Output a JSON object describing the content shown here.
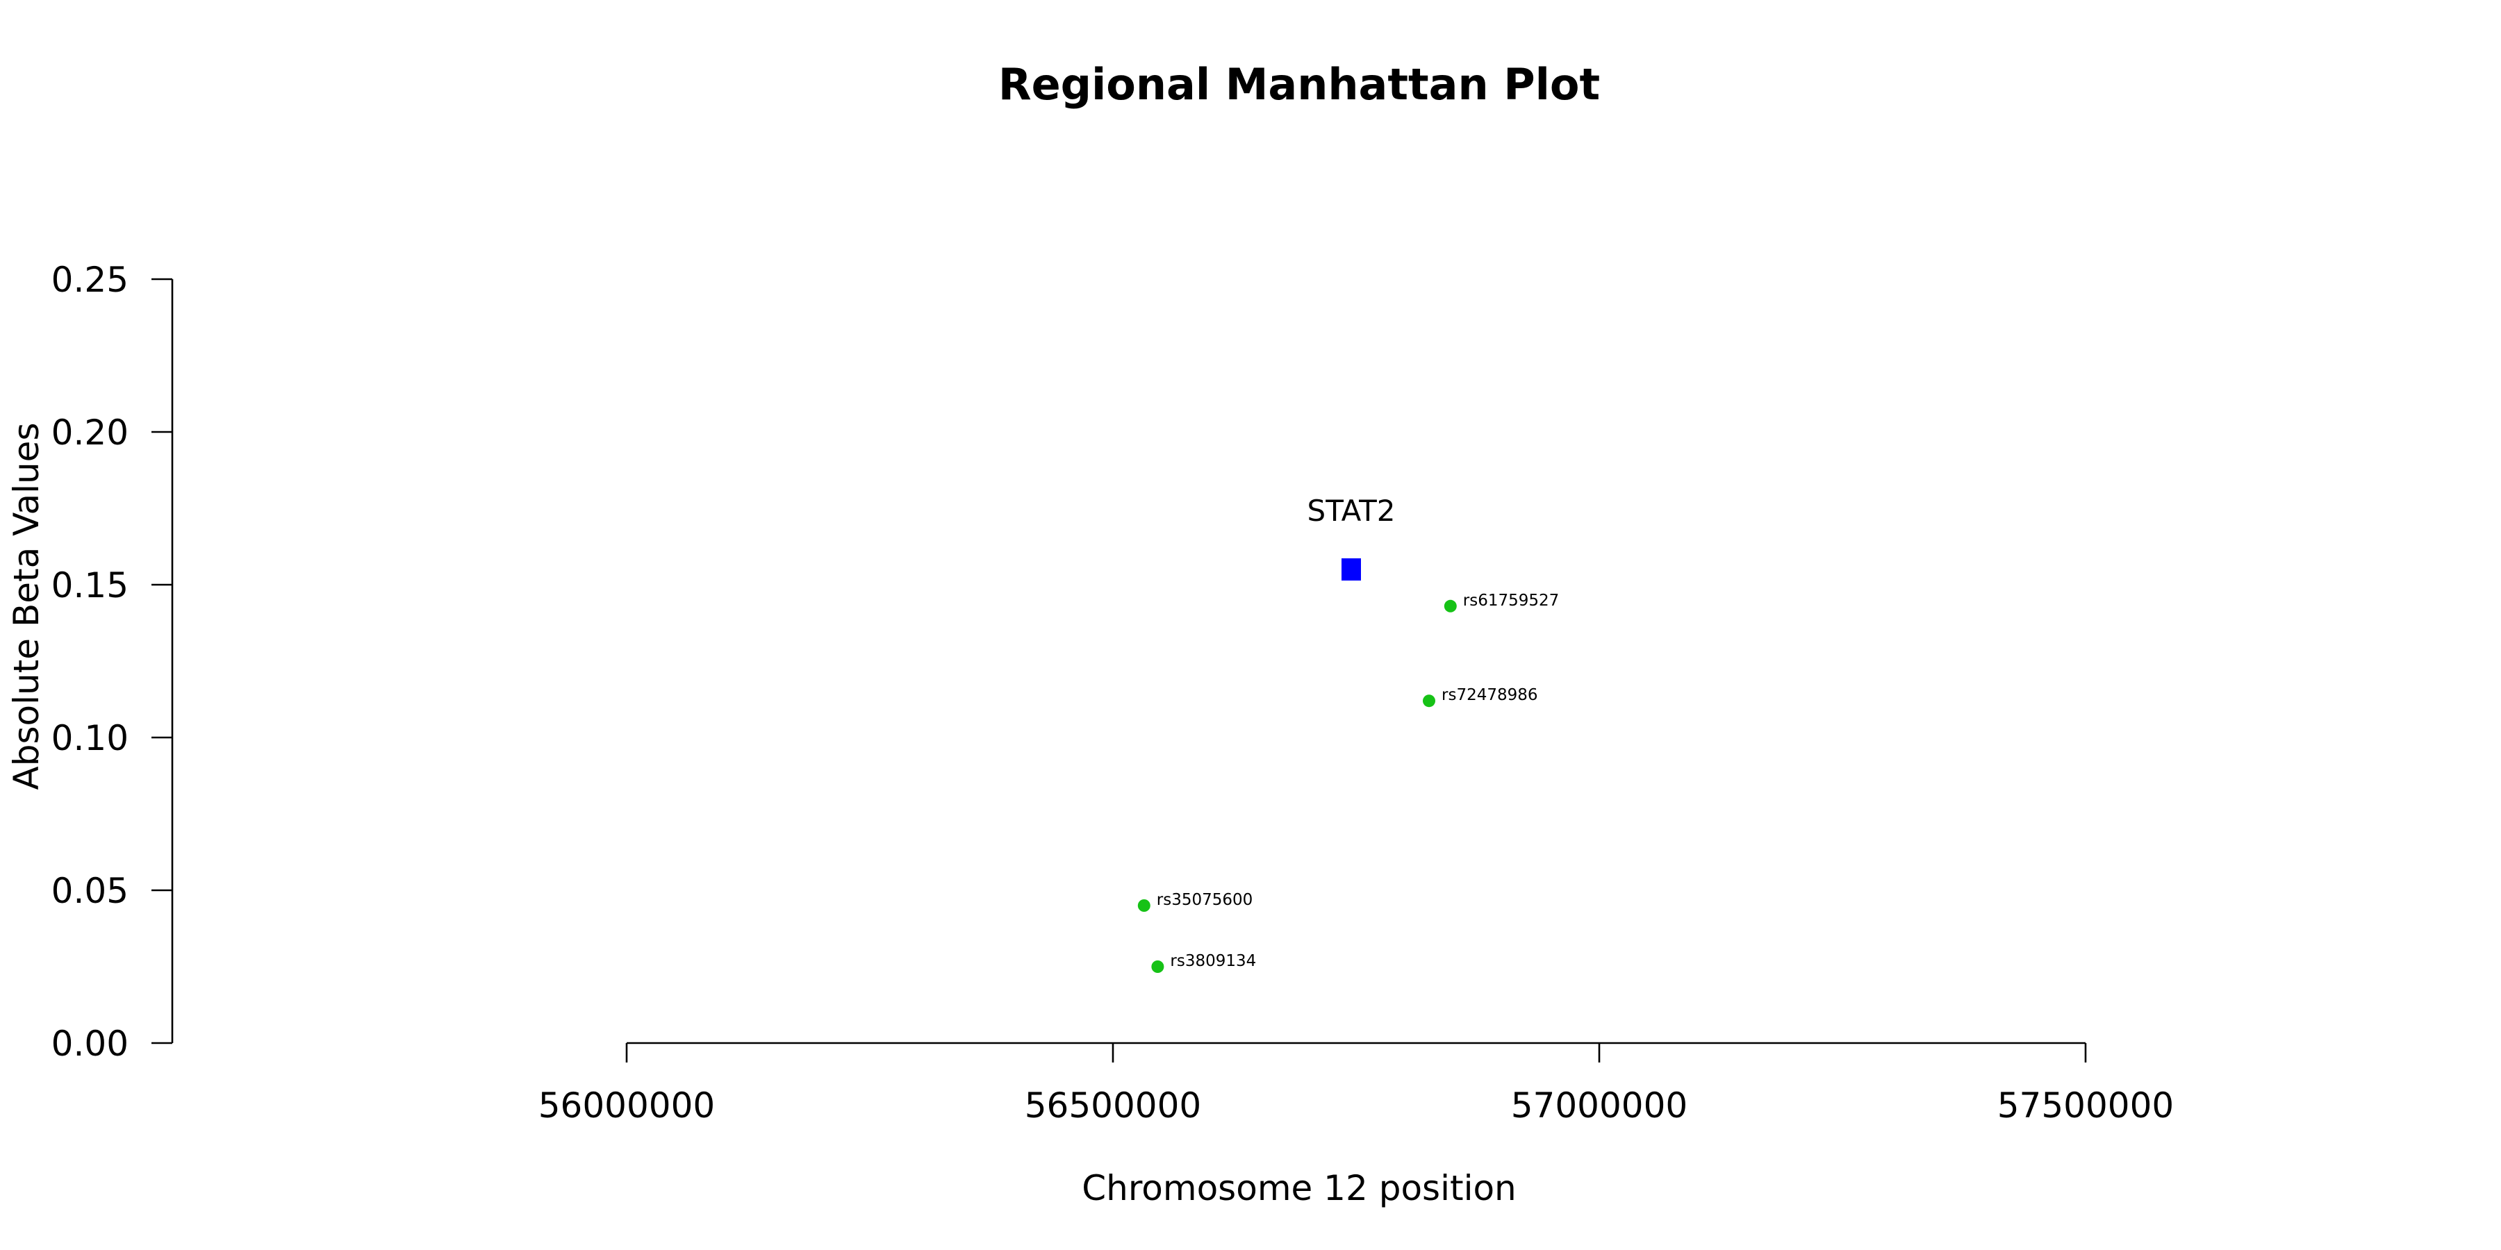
{
  "chart_data": {
    "type": "scatter",
    "title": "Regional Manhattan Plot",
    "xlabel": "Chromosome 12 position",
    "ylabel": "Absolute Beta Values",
    "xlim": [
      56000000,
      57500000
    ],
    "ylim": [
      0,
      0.25
    ],
    "x_ticks": [
      "56000000",
      "56500000",
      "57000000",
      "57500000"
    ],
    "y_ticks": [
      "0.00",
      "0.05",
      "0.10",
      "0.15",
      "0.20",
      "0.25"
    ],
    "grid": false,
    "gene": {
      "name": "STAT2",
      "x": 56745000,
      "y": 0.155,
      "color": "#0000ff",
      "marker": "square"
    },
    "series": [
      {
        "marker": "circle",
        "color": "#16c216",
        "points": [
          {
            "x": 56847000,
            "y": 0.143,
            "label": "rs61759527"
          },
          {
            "x": 56825000,
            "y": 0.112,
            "label": "rs72478986"
          },
          {
            "x": 56532000,
            "y": 0.045,
            "label": "rs35075600"
          },
          {
            "x": 56546000,
            "y": 0.025,
            "label": "rs3809134"
          }
        ]
      }
    ]
  }
}
